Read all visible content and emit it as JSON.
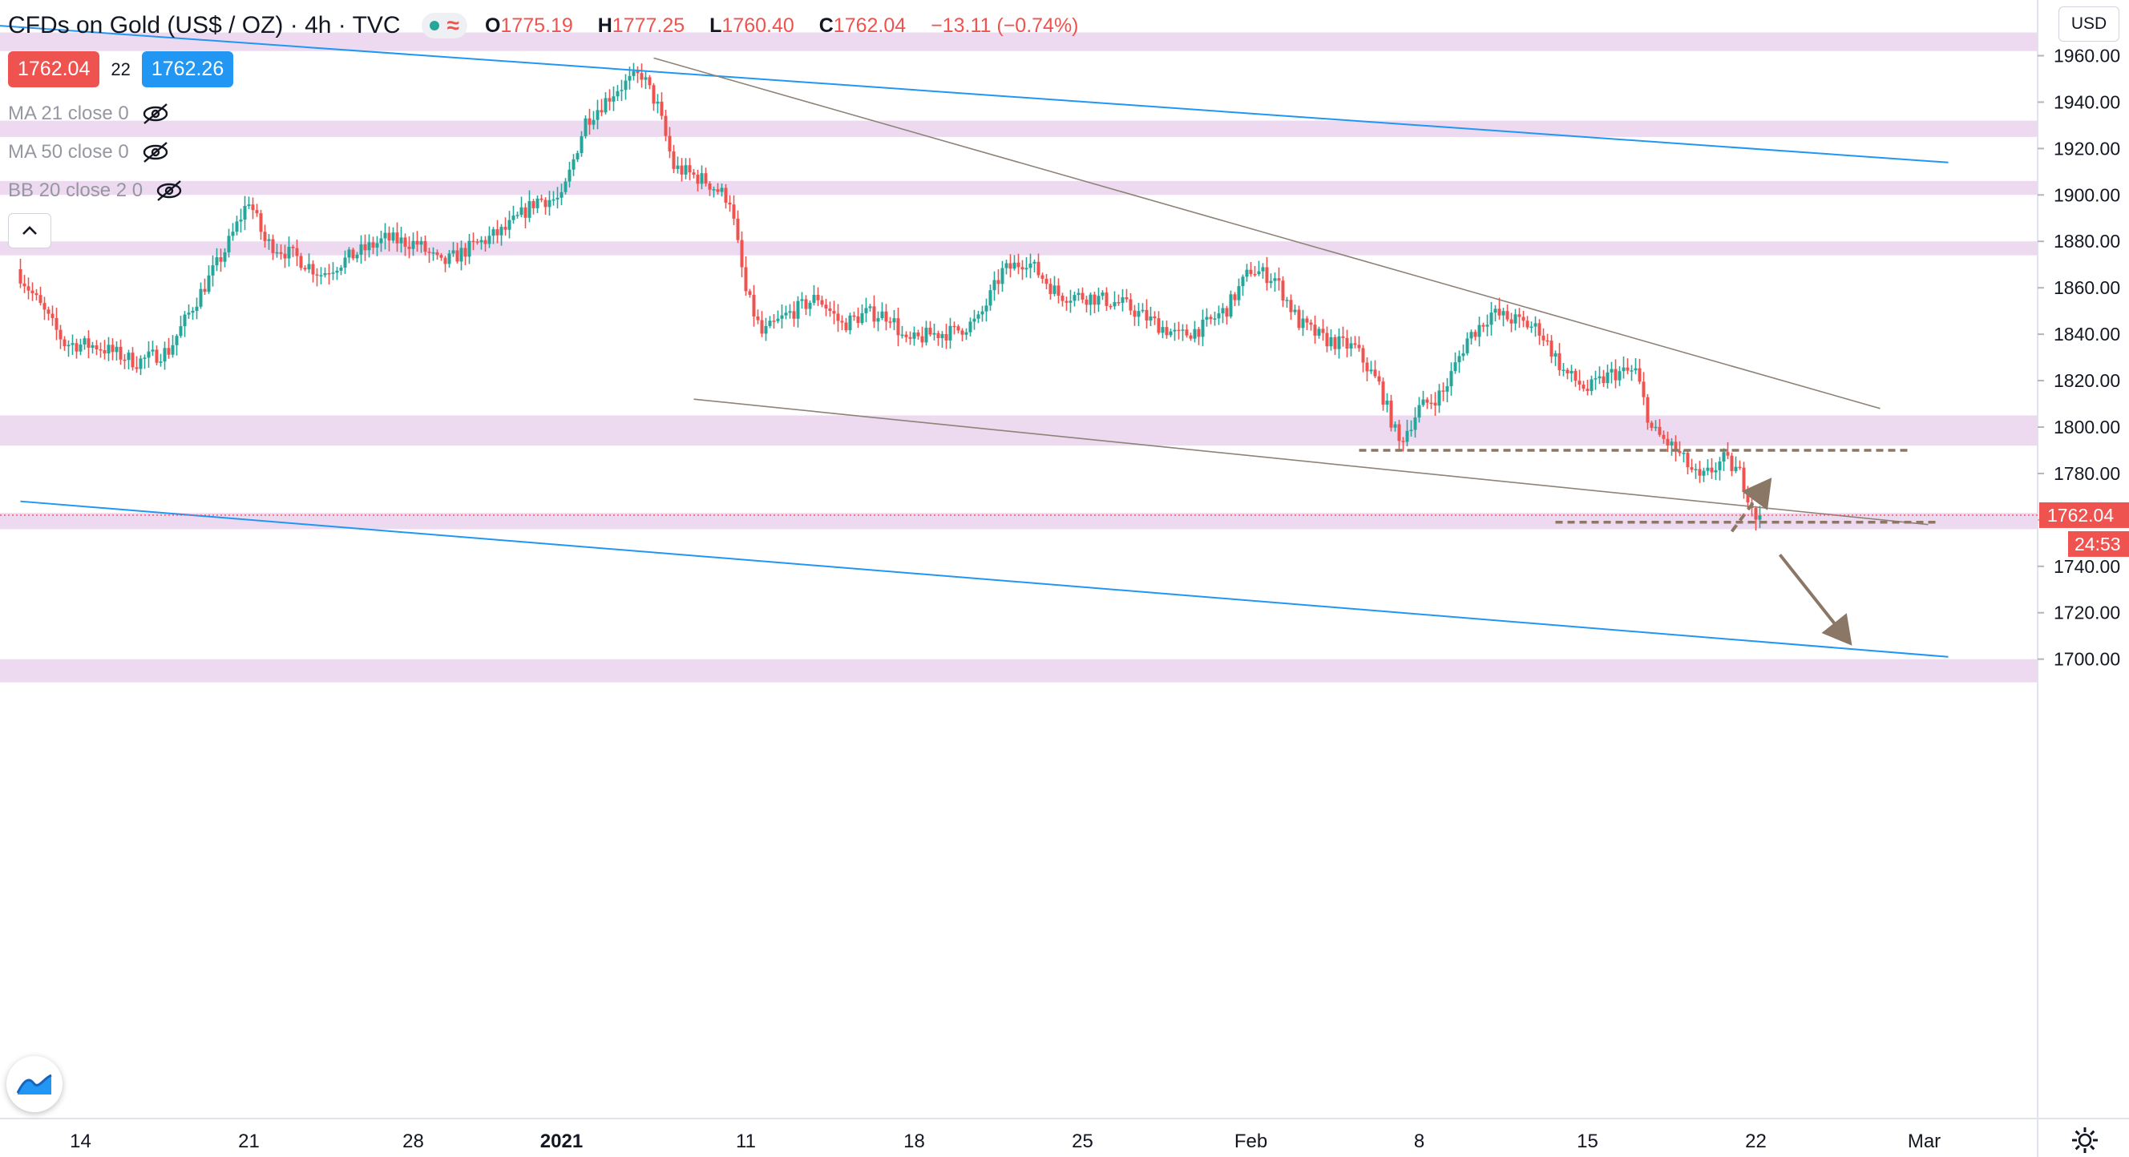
{
  "header": {
    "symbol": "CFDs on Gold (US$ / OZ)",
    "timeframe": "4h",
    "source": "TVC",
    "open_label": "O",
    "open": "1775.19",
    "high_label": "H",
    "high": "1777.25",
    "low_label": "L",
    "low": "1760.40",
    "close_label": "C",
    "close": "1762.04",
    "change": "−13.11 (−0.74%)"
  },
  "trade": {
    "bid": "1762.04",
    "spread": "22",
    "ask": "1762.26"
  },
  "indicators": [
    {
      "label": "MA 21 close 0",
      "icon": "eye-off-icon"
    },
    {
      "label": "MA 50 close 0",
      "icon": "eye-off-icon"
    },
    {
      "label": "BB 20 close 2 0",
      "icon": "eye-off-icon"
    }
  ],
  "currency_label": "USD",
  "price_label": {
    "value": "1762.04",
    "countdown": "24:53"
  },
  "colors": {
    "up": "#26a69a",
    "down": "#ef5350",
    "zone": "#ead3ee",
    "channel": "#2196f3",
    "trendline": "#8d8377",
    "annotation": "#8b7765"
  },
  "chart_data": {
    "type": "candlestick",
    "title": "CFDs on Gold (US$ / OZ)",
    "interval": "4h",
    "y_axis": {
      "ticks": [
        1700,
        1720,
        1740,
        1760,
        1780,
        1800,
        1820,
        1840,
        1860,
        1880,
        1900,
        1920,
        1940,
        1960
      ],
      "range": [
        1688,
        1970
      ],
      "position": "right"
    },
    "x_axis": {
      "ticks": [
        {
          "label": "14",
          "bar": 15
        },
        {
          "label": "21",
          "bar": 57
        },
        {
          "label": "28",
          "bar": 98
        },
        {
          "label": "2021",
          "bar": 135
        },
        {
          "label": "11",
          "bar": 181
        },
        {
          "label": "18",
          "bar": 223
        },
        {
          "label": "25",
          "bar": 265
        },
        {
          "label": "Feb",
          "bar": 307
        },
        {
          "label": "8",
          "bar": 349
        },
        {
          "label": "15",
          "bar": 391
        },
        {
          "label": "22",
          "bar": 433
        },
        {
          "label": "Mar",
          "bar": 475
        }
      ]
    },
    "waypoints": [
      [
        0,
        1868
      ],
      [
        12,
        1836
      ],
      [
        20,
        1835
      ],
      [
        30,
        1828
      ],
      [
        38,
        1833
      ],
      [
        44,
        1852
      ],
      [
        52,
        1876
      ],
      [
        58,
        1898
      ],
      [
        62,
        1880
      ],
      [
        70,
        1873
      ],
      [
        76,
        1866
      ],
      [
        84,
        1874
      ],
      [
        92,
        1881
      ],
      [
        100,
        1879
      ],
      [
        106,
        1870
      ],
      [
        114,
        1878
      ],
      [
        122,
        1885
      ],
      [
        130,
        1898
      ],
      [
        136,
        1898
      ],
      [
        142,
        1932
      ],
      [
        150,
        1946
      ],
      [
        156,
        1952
      ],
      [
        160,
        1938
      ],
      [
        164,
        1912
      ],
      [
        172,
        1906
      ],
      [
        178,
        1898
      ],
      [
        182,
        1858
      ],
      [
        186,
        1840
      ],
      [
        192,
        1848
      ],
      [
        200,
        1856
      ],
      [
        206,
        1844
      ],
      [
        212,
        1849
      ],
      [
        218,
        1848
      ],
      [
        222,
        1836
      ],
      [
        228,
        1840
      ],
      [
        234,
        1841
      ],
      [
        240,
        1846
      ],
      [
        246,
        1867
      ],
      [
        252,
        1872
      ],
      [
        260,
        1857
      ],
      [
        268,
        1856
      ],
      [
        276,
        1853
      ],
      [
        284,
        1845
      ],
      [
        290,
        1839
      ],
      [
        296,
        1843
      ],
      [
        302,
        1851
      ],
      [
        308,
        1868
      ],
      [
        314,
        1864
      ],
      [
        320,
        1845
      ],
      [
        326,
        1838
      ],
      [
        334,
        1834
      ],
      [
        340,
        1818
      ],
      [
        345,
        1793
      ],
      [
        350,
        1808
      ],
      [
        356,
        1815
      ],
      [
        362,
        1838
      ],
      [
        368,
        1849
      ],
      [
        374,
        1846
      ],
      [
        380,
        1842
      ],
      [
        386,
        1824
      ],
      [
        392,
        1816
      ],
      [
        398,
        1823
      ],
      [
        404,
        1824
      ],
      [
        408,
        1799
      ],
      [
        414,
        1790
      ],
      [
        420,
        1777
      ],
      [
        426,
        1786
      ],
      [
        430,
        1780
      ],
      [
        434,
        1762
      ]
    ],
    "resistance_zones": [
      [
        1962,
        1970
      ],
      [
        1925,
        1932
      ],
      [
        1900,
        1906
      ],
      [
        1874,
        1880
      ],
      [
        1792,
        1805
      ],
      [
        1756,
        1763
      ],
      [
        1690,
        1700
      ]
    ],
    "channel_lines": [
      {
        "from": [
          -14,
          1974
        ],
        "to": [
          481,
          1914
        ]
      },
      {
        "from": [
          0,
          1768
        ],
        "to": [
          481,
          1701
        ]
      }
    ],
    "trend_lines": [
      {
        "from": [
          158,
          1959
        ],
        "to": [
          464,
          1808
        ]
      },
      {
        "from": [
          168,
          1812
        ],
        "to": [
          476,
          1758
        ]
      }
    ],
    "level_lines": [
      {
        "from": [
          334,
          1790
        ],
        "to": [
          471,
          1790
        ]
      },
      {
        "from": [
          383,
          1759
        ],
        "to": [
          478,
          1759
        ]
      }
    ],
    "projection_arrows": [
      {
        "from": [
          427,
          1755
        ],
        "to": [
          436,
          1776
        ],
        "style": "dashed"
      },
      {
        "from": [
          439,
          1745
        ],
        "to": [
          456,
          1708
        ],
        "style": "solid"
      }
    ],
    "last_price": 1762.04
  }
}
